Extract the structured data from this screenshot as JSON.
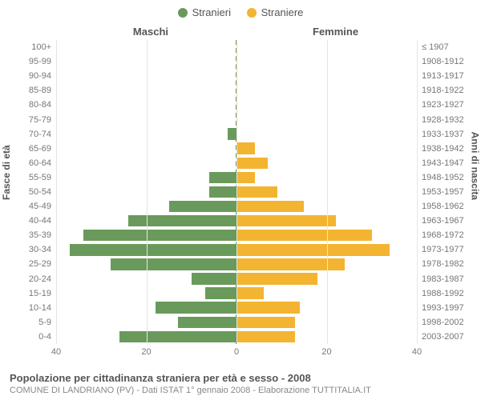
{
  "chart": {
    "type": "population-pyramid",
    "background_color": "#ffffff",
    "grid_color": "#e5e5e5",
    "center_line_color": "#8a8a3a",
    "text_color": "#555555",
    "muted_text_color": "#777777",
    "legend": [
      {
        "label": "Stranieri",
        "color": "#6a9a5b"
      },
      {
        "label": "Straniere",
        "color": "#f3b431"
      }
    ],
    "column_titles": {
      "male": "Maschi",
      "female": "Femmine"
    },
    "axis_titles": {
      "left": "Fasce di età",
      "right": "Anni di nascita"
    },
    "x_axis": {
      "max": 40,
      "ticks": [
        40,
        20,
        0,
        20,
        40
      ]
    },
    "age_bands": [
      {
        "age": "100+",
        "birth": "≤ 1907",
        "male": 0,
        "female": 0
      },
      {
        "age": "95-99",
        "birth": "1908-1912",
        "male": 0,
        "female": 0
      },
      {
        "age": "90-94",
        "birth": "1913-1917",
        "male": 0,
        "female": 0
      },
      {
        "age": "85-89",
        "birth": "1918-1922",
        "male": 0,
        "female": 0
      },
      {
        "age": "80-84",
        "birth": "1923-1927",
        "male": 0,
        "female": 0
      },
      {
        "age": "75-79",
        "birth": "1928-1932",
        "male": 0,
        "female": 0
      },
      {
        "age": "70-74",
        "birth": "1933-1937",
        "male": 2,
        "female": 0
      },
      {
        "age": "65-69",
        "birth": "1938-1942",
        "male": 0,
        "female": 4
      },
      {
        "age": "60-64",
        "birth": "1943-1947",
        "male": 0,
        "female": 7
      },
      {
        "age": "55-59",
        "birth": "1948-1952",
        "male": 6,
        "female": 4
      },
      {
        "age": "50-54",
        "birth": "1953-1957",
        "male": 6,
        "female": 9
      },
      {
        "age": "45-49",
        "birth": "1958-1962",
        "male": 15,
        "female": 15
      },
      {
        "age": "40-44",
        "birth": "1963-1967",
        "male": 24,
        "female": 22
      },
      {
        "age": "35-39",
        "birth": "1968-1972",
        "male": 34,
        "female": 30
      },
      {
        "age": "30-34",
        "birth": "1973-1977",
        "male": 37,
        "female": 34
      },
      {
        "age": "25-29",
        "birth": "1978-1982",
        "male": 28,
        "female": 24
      },
      {
        "age": "20-24",
        "birth": "1983-1987",
        "male": 10,
        "female": 18
      },
      {
        "age": "15-19",
        "birth": "1988-1992",
        "male": 7,
        "female": 6
      },
      {
        "age": "10-14",
        "birth": "1993-1997",
        "male": 18,
        "female": 14
      },
      {
        "age": "5-9",
        "birth": "1998-2002",
        "male": 13,
        "female": 13
      },
      {
        "age": "0-4",
        "birth": "2003-2007",
        "male": 26,
        "female": 13
      }
    ],
    "footer": {
      "title": "Popolazione per cittadinanza straniera per età e sesso - 2008",
      "subtitle": "COMUNE DI LANDRIANO (PV) - Dati ISTAT 1° gennaio 2008 - Elaborazione TUTTITALIA.IT"
    },
    "fonts": {
      "legend_size_pt": 10,
      "axis_label_size_pt": 8,
      "axis_title_size_pt": 9,
      "footer_title_size_pt": 10,
      "footer_sub_size_pt": 8
    }
  }
}
